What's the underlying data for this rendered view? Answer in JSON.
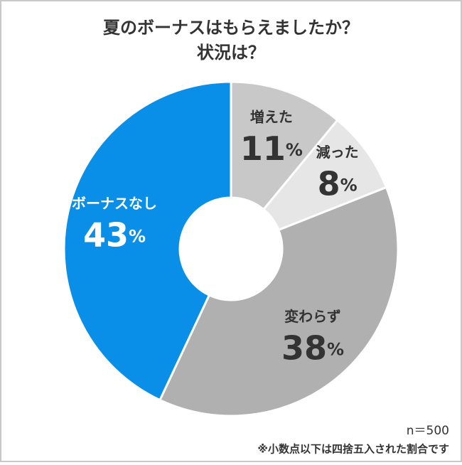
{
  "chart_data": {
    "type": "donut",
    "title": [
      "夏のボーナスはもらえましたか？",
      "状況は？"
    ],
    "categories": [
      "増えた",
      "減った",
      "変わらず",
      "ボーナスなし"
    ],
    "values": [
      11,
      8,
      38,
      43
    ],
    "value_labels": [
      "11%",
      "8%",
      "38%",
      "43%"
    ],
    "colors": [
      "#c8c8c8",
      "#e6e6e6",
      "#b0b0b0",
      "#0a8fe8"
    ],
    "notes": [
      "n＝500",
      "※小数点以下は四捨五入された割合です"
    ]
  }
}
